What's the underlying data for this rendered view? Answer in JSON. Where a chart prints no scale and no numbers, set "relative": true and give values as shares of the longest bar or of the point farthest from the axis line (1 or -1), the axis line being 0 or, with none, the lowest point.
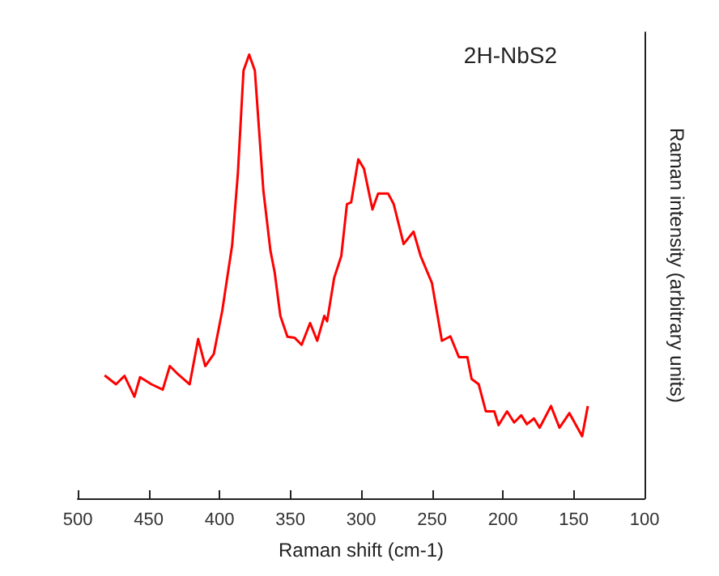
{
  "chart_data": {
    "type": "line",
    "title": "2H-NbS2",
    "xlabel": "Raman shift (cm-1)",
    "ylabel": "Raman intensity (arbitrary units)",
    "relative": true,
    "marker": "none",
    "line_style": "solid",
    "xlim": [
      500,
      100
    ],
    "xticks": [
      500,
      450,
      400,
      350,
      300,
      250,
      200,
      150,
      100
    ],
    "series": [
      {
        "color": "#ff0000",
        "x": [
          481,
          473,
          467,
          460,
          456,
          448,
          440,
          435,
          429,
          421,
          415,
          410,
          404,
          398,
          391,
          387,
          383,
          379,
          375,
          369,
          364,
          361,
          357,
          352,
          347,
          342,
          336,
          331,
          326,
          324,
          319,
          314,
          310,
          307,
          302,
          298,
          292,
          288,
          281,
          277,
          270,
          263,
          258,
          250,
          243,
          237,
          231,
          225,
          222,
          217,
          212,
          206,
          203,
          197,
          192,
          187,
          183,
          178,
          174,
          166,
          160,
          153,
          144,
          140
        ],
        "values": [
          0.277,
          0.257,
          0.276,
          0.229,
          0.273,
          0.257,
          0.245,
          0.298,
          0.279,
          0.257,
          0.359,
          0.298,
          0.325,
          0.423,
          0.571,
          0.731,
          0.964,
          1.0,
          0.964,
          0.694,
          0.558,
          0.509,
          0.411,
          0.364,
          0.362,
          0.346,
          0.395,
          0.355,
          0.411,
          0.399,
          0.497,
          0.546,
          0.663,
          0.667,
          0.764,
          0.743,
          0.651,
          0.687,
          0.687,
          0.663,
          0.573,
          0.601,
          0.546,
          0.485,
          0.355,
          0.365,
          0.318,
          0.318,
          0.269,
          0.257,
          0.196,
          0.196,
          0.165,
          0.196,
          0.171,
          0.187,
          0.167,
          0.18,
          0.159,
          0.208,
          0.159,
          0.192,
          0.14,
          0.208
        ]
      }
    ]
  }
}
